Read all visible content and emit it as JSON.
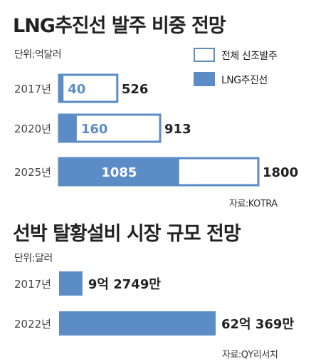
{
  "chart_data": [
    {
      "type": "bar",
      "title": "LNG추진선 발주 비중 전망",
      "unit": "단위:억달러",
      "source": "자료:KOTRA",
      "legend": [
        "전체 신조발주",
        "LNG추진선"
      ],
      "categories": [
        "2017년",
        "2020년",
        "2025년"
      ],
      "series": [
        {
          "name": "전체 신조발주",
          "values": [
            526,
            913,
            1800
          ],
          "labels": [
            "526",
            "913",
            "1800"
          ]
        },
        {
          "name": "LNG추진선",
          "values": [
            40,
            160,
            1085
          ],
          "labels": [
            "40",
            "160",
            "1085"
          ]
        }
      ],
      "colors": {
        "total_fill": "#ffffff",
        "lng_fill": "#5b8cc6",
        "stroke": "#5b8cc6"
      }
    },
    {
      "type": "bar",
      "title": "선박 탈황설비 시장 규모 전망",
      "unit": "단위:달러",
      "source": "자료:QY리서치",
      "categories": [
        "2017년",
        "2022년"
      ],
      "values": [
        927490000,
        6203690000
      ],
      "value_labels": [
        "9억 2749만",
        "62억 369만"
      ],
      "colors": {
        "fill": "#5b8cc6"
      }
    }
  ]
}
